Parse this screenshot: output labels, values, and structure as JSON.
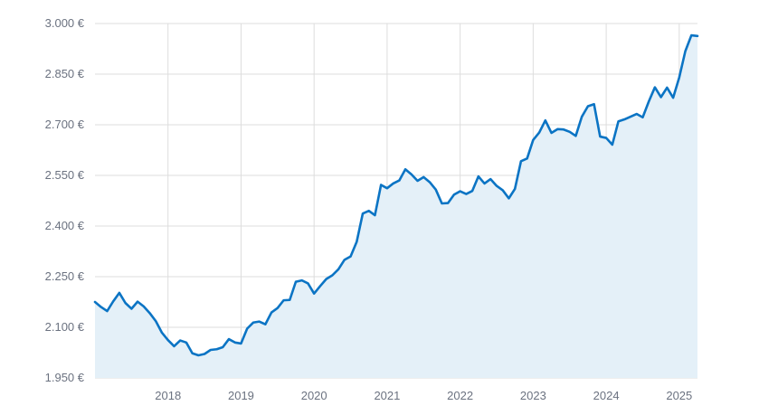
{
  "chart_data": {
    "type": "area",
    "title": "",
    "xlabel": "",
    "ylabel": "",
    "x_ticks": [
      "2018",
      "2019",
      "2020",
      "2021",
      "2022",
      "2023",
      "2024",
      "2025"
    ],
    "y_ticks": [
      "1.950 €",
      "2.100 €",
      "2.250 €",
      "2.400 €",
      "2.550 €",
      "2.700 €",
      "2.850 €",
      "3.000 €"
    ],
    "ylim": [
      1950,
      3000
    ],
    "xlim": [
      "2017-01",
      "2025-04"
    ],
    "grid": true,
    "legend": "none",
    "colors": {
      "line": "#0b74c4",
      "fill": "#e4f0f8",
      "grid": "#dddddd",
      "text": "#6b7280"
    },
    "series": [
      {
        "x": [
          "2017-01",
          "2017-02",
          "2017-03",
          "2017-04",
          "2017-05",
          "2017-06",
          "2017-07",
          "2017-08",
          "2017-09",
          "2017-10",
          "2017-11",
          "2017-12",
          "2018-01",
          "2018-02",
          "2018-03",
          "2018-04",
          "2018-05",
          "2018-06",
          "2018-07",
          "2018-08",
          "2018-09",
          "2018-10",
          "2018-11",
          "2018-12",
          "2019-01",
          "2019-02",
          "2019-03",
          "2019-04",
          "2019-05",
          "2019-06",
          "2019-07",
          "2019-08",
          "2019-09",
          "2019-10",
          "2019-11",
          "2019-12",
          "2020-01",
          "2020-02",
          "2020-03",
          "2020-04",
          "2020-05",
          "2020-06",
          "2020-07",
          "2020-08",
          "2020-09",
          "2020-10",
          "2020-11",
          "2020-12",
          "2021-01",
          "2021-02",
          "2021-03",
          "2021-04",
          "2021-05",
          "2021-06",
          "2021-07",
          "2021-08",
          "2021-09",
          "2021-10",
          "2021-11",
          "2021-12",
          "2022-01",
          "2022-02",
          "2022-03",
          "2022-04",
          "2022-05",
          "2022-06",
          "2022-07",
          "2022-08",
          "2022-09",
          "2022-10",
          "2022-11",
          "2022-12",
          "2023-01",
          "2023-02",
          "2023-03",
          "2023-04",
          "2023-05",
          "2023-06",
          "2023-07",
          "2023-08",
          "2023-09",
          "2023-10",
          "2023-11",
          "2023-12",
          "2024-01",
          "2024-02",
          "2024-03",
          "2024-04",
          "2024-05",
          "2024-06",
          "2024-07",
          "2024-08",
          "2024-09",
          "2024-10",
          "2024-11",
          "2024-12",
          "2025-01",
          "2025-02",
          "2025-03",
          "2025-04"
        ],
        "values": [
          2175,
          2160,
          2148,
          2177,
          2202,
          2172,
          2155,
          2176,
          2162,
          2142,
          2118,
          2084,
          2062,
          2044,
          2061,
          2055,
          2023,
          2017,
          2021,
          2033,
          2035,
          2041,
          2065,
          2055,
          2052,
          2096,
          2114,
          2117,
          2109,
          2144,
          2157,
          2180,
          2181,
          2235,
          2239,
          2230,
          2200,
          2222,
          2243,
          2254,
          2272,
          2300,
          2310,
          2353,
          2437,
          2445,
          2432,
          2522,
          2512,
          2526,
          2535,
          2568,
          2553,
          2534,
          2545,
          2530,
          2508,
          2467,
          2468,
          2493,
          2503,
          2495,
          2504,
          2547,
          2526,
          2539,
          2519,
          2506,
          2482,
          2510,
          2592,
          2600,
          2655,
          2677,
          2713,
          2676,
          2687,
          2686,
          2679,
          2667,
          2724,
          2755,
          2761,
          2665,
          2661,
          2641,
          2710,
          2716,
          2724,
          2732,
          2722,
          2769,
          2811,
          2782,
          2810,
          2780,
          2840,
          2918,
          2965,
          2963
        ]
      }
    ]
  }
}
